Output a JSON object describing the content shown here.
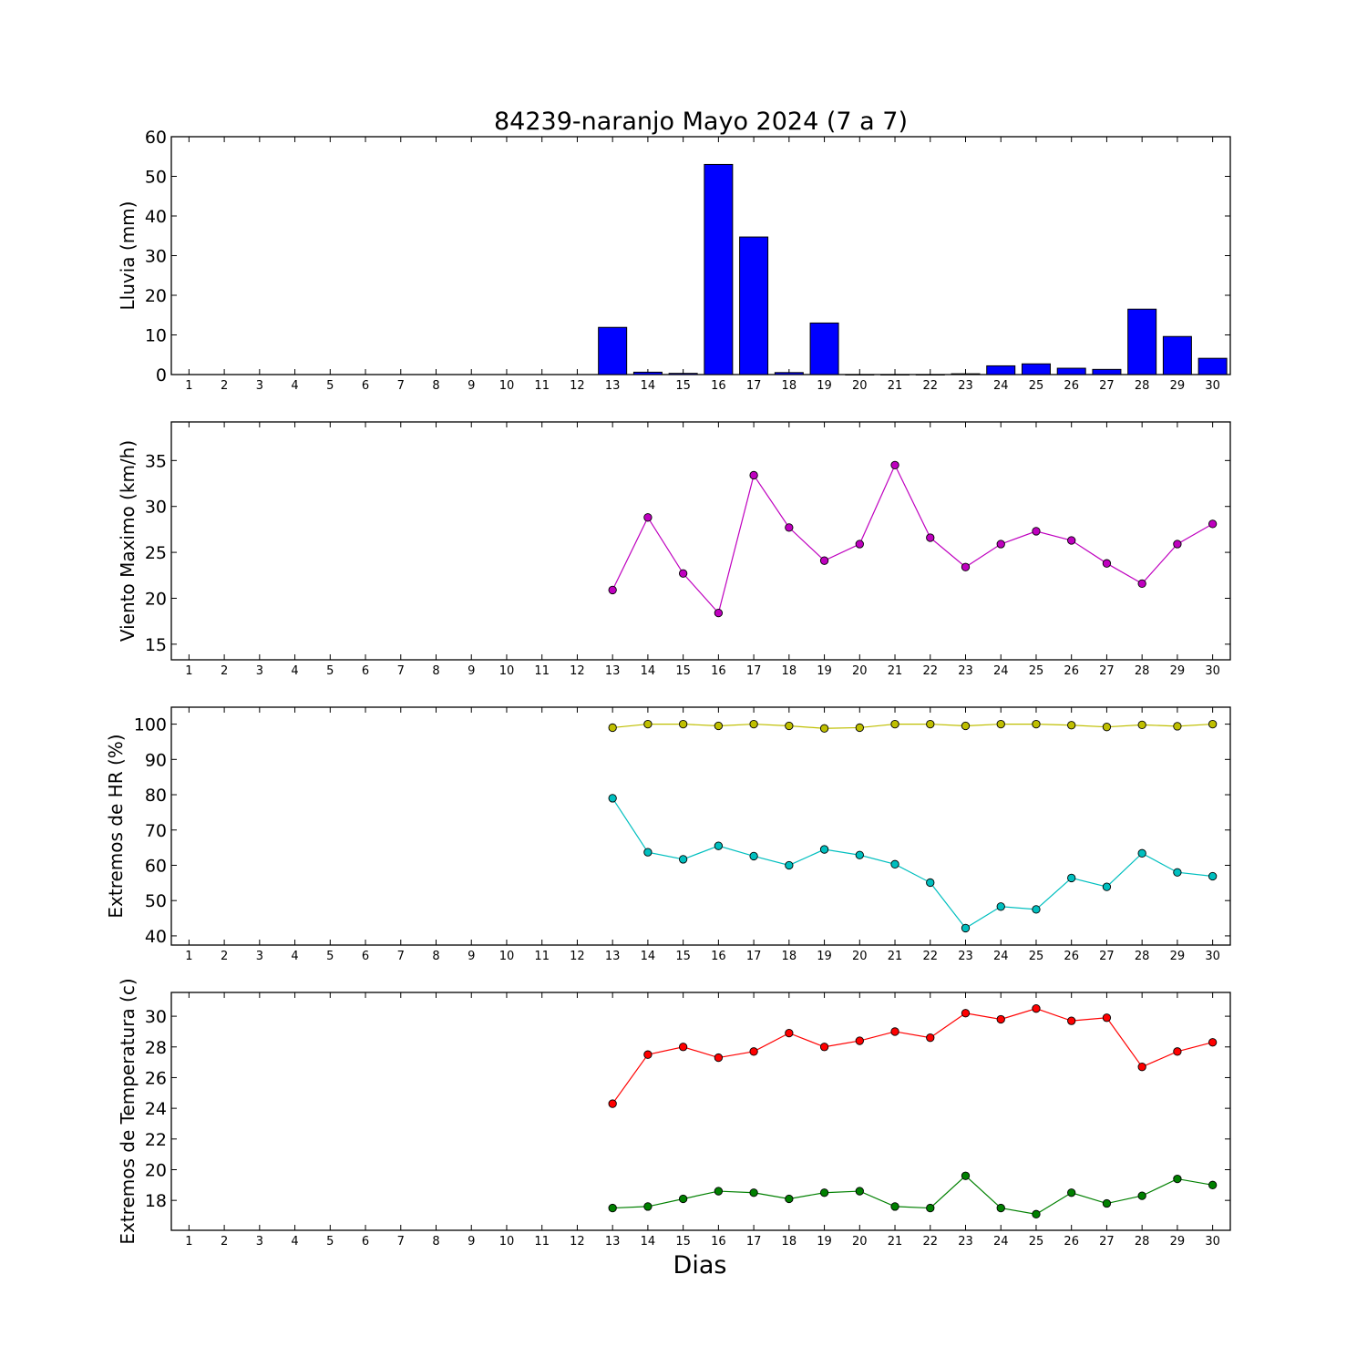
{
  "title": "84239-naranjo Mayo 2024  (7 a 7)",
  "xlabel": "Dias",
  "colors": {
    "rain": "#0000ff",
    "wind": "#bf00bf",
    "hr_max": "#bfbf00",
    "hr_min": "#00bfbf",
    "temp_max": "#ff0000",
    "temp_min": "#008000"
  },
  "chart_data": [
    {
      "type": "bar",
      "ylabel": "Lluvia (mm)",
      "categories": [
        1,
        2,
        3,
        4,
        5,
        6,
        7,
        8,
        9,
        10,
        11,
        12,
        13,
        14,
        15,
        16,
        17,
        18,
        19,
        20,
        21,
        22,
        23,
        24,
        25,
        26,
        27,
        28,
        29,
        30
      ],
      "values": [
        null,
        null,
        null,
        null,
        null,
        null,
        null,
        null,
        null,
        null,
        null,
        null,
        11.9,
        0.6,
        0.3,
        53,
        34.7,
        0.5,
        13,
        0,
        0,
        0,
        0.2,
        2.2,
        2.7,
        1.6,
        1.3,
        16.5,
        9.6,
        4.1
      ],
      "ylim": [
        0,
        60
      ],
      "yticks": [
        0,
        10,
        20,
        30,
        40,
        50,
        60
      ]
    },
    {
      "type": "line",
      "ylabel": "Viento Maximo (km/h)",
      "x": [
        1,
        2,
        3,
        4,
        5,
        6,
        7,
        8,
        9,
        10,
        11,
        12,
        13,
        14,
        15,
        16,
        17,
        18,
        19,
        20,
        21,
        22,
        23,
        24,
        25,
        26,
        27,
        28,
        29,
        30
      ],
      "series": [
        {
          "color": "#bf00bf",
          "values": [
            null,
            null,
            null,
            null,
            null,
            null,
            null,
            null,
            null,
            null,
            null,
            null,
            20.9,
            28.8,
            22.7,
            18.4,
            33.4,
            27.7,
            24.1,
            25.9,
            34.5,
            26.6,
            23.4,
            25.9,
            27.3,
            26.3,
            23.8,
            21.6,
            25.9,
            28.1
          ]
        }
      ],
      "ylim": [
        13.3,
        39.2
      ],
      "yticks": [
        15,
        20,
        25,
        30,
        35
      ]
    },
    {
      "type": "line",
      "ylabel": "Extremos de HR (%)",
      "x": [
        1,
        2,
        3,
        4,
        5,
        6,
        7,
        8,
        9,
        10,
        11,
        12,
        13,
        14,
        15,
        16,
        17,
        18,
        19,
        20,
        21,
        22,
        23,
        24,
        25,
        26,
        27,
        28,
        29,
        30
      ],
      "series": [
        {
          "color": "#bfbf00",
          "values": [
            null,
            null,
            null,
            null,
            null,
            null,
            null,
            null,
            null,
            null,
            null,
            null,
            99,
            100,
            100,
            99.5,
            100,
            99.5,
            98.8,
            99,
            100,
            100,
            99.5,
            100,
            100,
            99.7,
            99.2,
            99.8,
            99.4,
            100
          ]
        },
        {
          "color": "#00bfbf",
          "values": [
            null,
            null,
            null,
            null,
            null,
            null,
            null,
            null,
            null,
            null,
            null,
            null,
            79,
            63.7,
            61.7,
            65.5,
            62.6,
            60,
            64.5,
            62.9,
            60.3,
            55.1,
            42.2,
            48.3,
            47.5,
            56.4,
            53.9,
            63.4,
            58,
            56.9
          ]
        }
      ],
      "ylim": [
        37.4,
        104.8
      ],
      "yticks": [
        40,
        50,
        60,
        70,
        80,
        90,
        100
      ]
    },
    {
      "type": "line",
      "ylabel": "Extremos de Temperatura (c)",
      "x": [
        1,
        2,
        3,
        4,
        5,
        6,
        7,
        8,
        9,
        10,
        11,
        12,
        13,
        14,
        15,
        16,
        17,
        18,
        19,
        20,
        21,
        22,
        23,
        24,
        25,
        26,
        27,
        28,
        29,
        30
      ],
      "series": [
        {
          "color": "#ff0000",
          "values": [
            null,
            null,
            null,
            null,
            null,
            null,
            null,
            null,
            null,
            null,
            null,
            null,
            24.3,
            27.5,
            28,
            27.3,
            27.7,
            28.9,
            28,
            28.4,
            29,
            28.6,
            30.2,
            29.8,
            30.5,
            29.7,
            29.9,
            26.7,
            27.7,
            28.3
          ]
        },
        {
          "color": "#008000",
          "values": [
            null,
            null,
            null,
            null,
            null,
            null,
            null,
            null,
            null,
            null,
            null,
            null,
            17.5,
            17.6,
            18.1,
            18.6,
            18.5,
            18.1,
            18.5,
            18.6,
            17.6,
            17.5,
            19.6,
            17.5,
            17.1,
            18.5,
            17.8,
            18.3,
            19.4,
            19
          ]
        }
      ],
      "ylim": [
        16.05,
        31.55
      ],
      "yticks": [
        18,
        20,
        22,
        24,
        26,
        28,
        30
      ]
    }
  ]
}
